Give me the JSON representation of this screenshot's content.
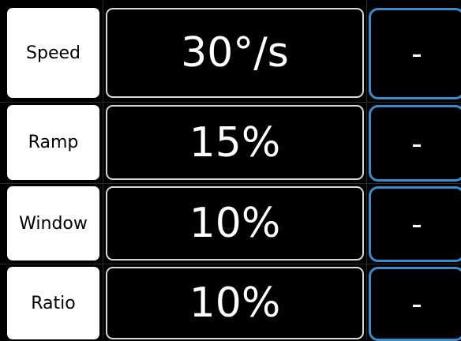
{
  "colors": {
    "background": "#000000",
    "label_bg": "#ffffff",
    "value_border": "#d9d9d9",
    "button_border": "#3b8ccc"
  },
  "rows": [
    {
      "label": "Speed",
      "value": "30°/s",
      "button": "-"
    },
    {
      "label": "Ramp",
      "value": "15%",
      "button": "-"
    },
    {
      "label": "Window",
      "value": "10%",
      "button": "-"
    },
    {
      "label": "Ratio",
      "value": "10%",
      "button": "-"
    }
  ]
}
